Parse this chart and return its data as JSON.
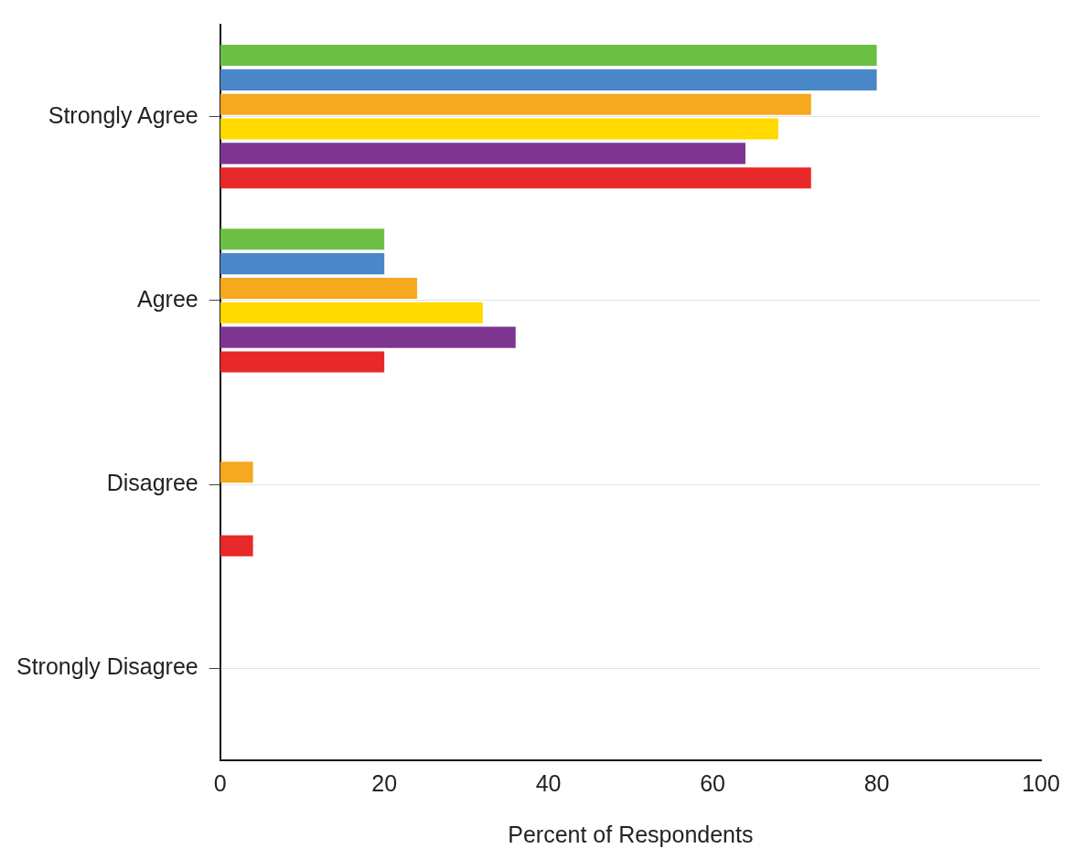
{
  "chart_data": {
    "type": "bar",
    "orientation": "horizontal",
    "xlabel": "Percent of Respondents",
    "categories": [
      "Strongly Agree",
      "Agree",
      "Disagree",
      "Strongly Disagree"
    ],
    "series": [
      {
        "color": "#6cbf45",
        "values": [
          80,
          20,
          0,
          0
        ]
      },
      {
        "color": "#4a87c8",
        "values": [
          80,
          20,
          0,
          0
        ]
      },
      {
        "color": "#f6a81f",
        "values": [
          72,
          24,
          4,
          0
        ]
      },
      {
        "color": "#ffd900",
        "values": [
          68,
          32,
          0,
          0
        ]
      },
      {
        "color": "#7e3590",
        "values": [
          64,
          36,
          0,
          0
        ]
      },
      {
        "color": "#e8292a",
        "values": [
          72,
          20,
          4,
          0
        ]
      }
    ],
    "xlim": [
      0,
      100
    ],
    "xticks": [
      0,
      20,
      40,
      60,
      80,
      100
    ],
    "grid": "y",
    "legend": false
  }
}
